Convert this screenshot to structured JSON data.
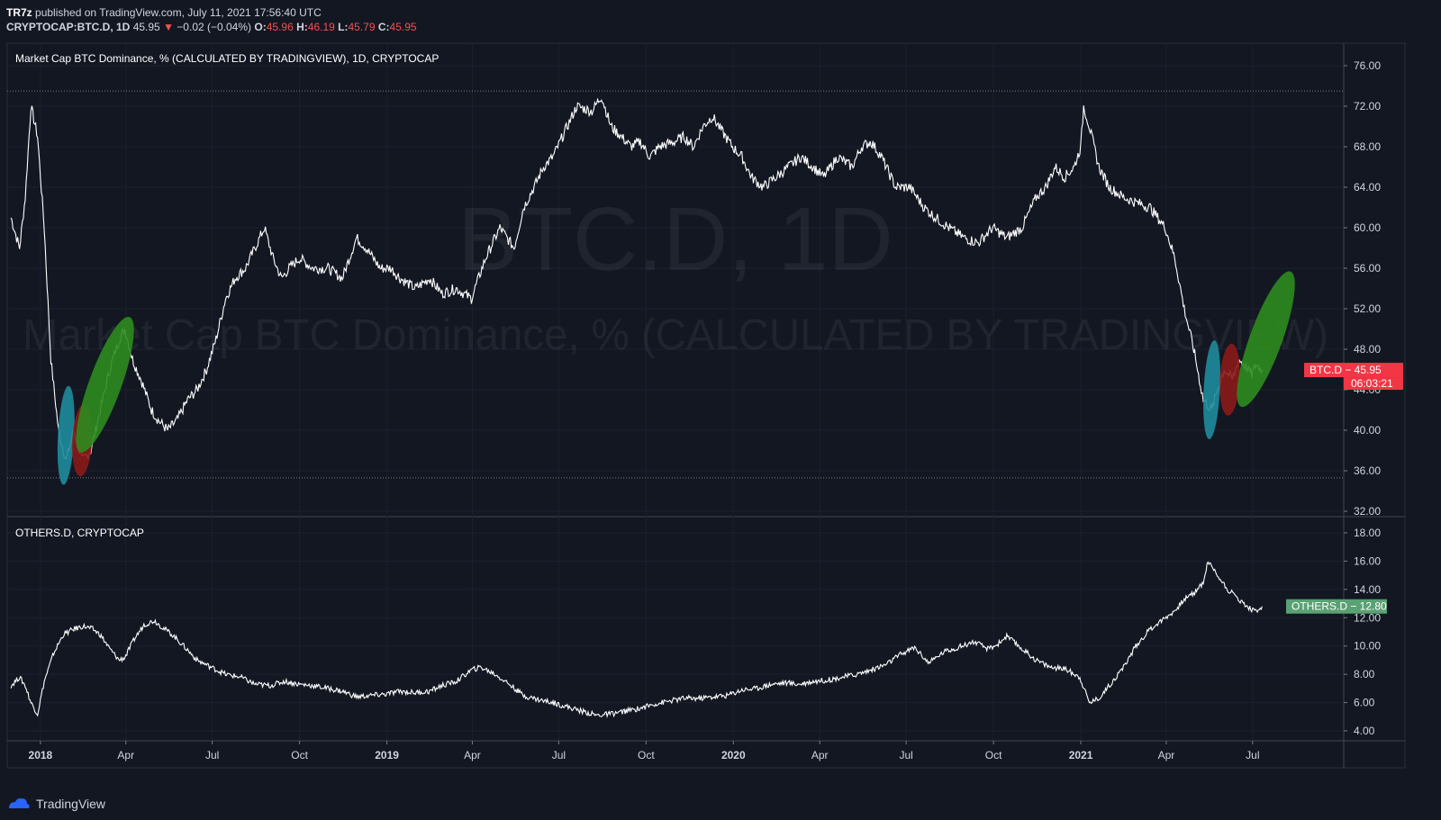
{
  "header": {
    "publisher": "TR7z",
    "published_text": "published on TradingView.com, July 11, 2021 17:56:40 UTC",
    "symbol": "CRYPTOCAP:BTC.D, 1D",
    "last": "45.95",
    "change": "−0.02 (−0.04%)",
    "open_label": "O:",
    "open": "45.96",
    "high_label": "H:",
    "high": "46.19",
    "low_label": "L:",
    "low": "45.79",
    "close_label": "C:",
    "close": "45.95"
  },
  "footer": {
    "brand": "TradingView"
  },
  "colors": {
    "background": "#131722",
    "grid": "#1c2030",
    "line": "#ffffff",
    "btc_badge": "#f23645",
    "others_badge": "#5aa174",
    "cyan_ellipse": "#1f8c9c",
    "red_ellipse": "#8b1a1a",
    "green_ellipse": "#2e8b1e"
  },
  "chart_data": [
    {
      "type": "line",
      "title": "Market Cap BTC Dominance, % (CALCULATED BY TRADINGVIEW), 1D, CRYPTOCAP",
      "watermark_symbol": "BTC.D, 1D",
      "watermark_name": "Market Cap BTC Dominance, % (CALCULATED BY TRADINGVIEW)",
      "ylim": [
        32,
        76
      ],
      "y_ticks": [
        "76.00",
        "72.00",
        "68.00",
        "64.00",
        "60.00",
        "56.00",
        "52.00",
        "48.00",
        "44.00",
        "40.00",
        "36.00",
        "32.00"
      ],
      "horizontal_dotted_lines": [
        73.5,
        35.3
      ],
      "last_label": "BTC.D",
      "last_value": "45.95",
      "countdown": "06:03:21",
      "series": [
        {
          "x": [
            "2017-12-01",
            "2017-12-10",
            "2017-12-16",
            "2017-12-22",
            "2017-12-29",
            "2018-01-05",
            "2018-01-12",
            "2018-01-20",
            "2018-01-28",
            "2018-02-05",
            "2018-02-14",
            "2018-02-23",
            "2018-03-05",
            "2018-03-15",
            "2018-03-25",
            "2018-03-31",
            "2018-04-08",
            "2018-04-17",
            "2018-04-28",
            "2018-05-05",
            "2018-05-15",
            "2018-05-25",
            "2018-06-05",
            "2018-06-15",
            "2018-06-25",
            "2018-07-05",
            "2018-07-15",
            "2018-07-25",
            "2018-08-05",
            "2018-08-15",
            "2018-08-25",
            "2018-09-03",
            "2018-09-12",
            "2018-09-20",
            "2018-10-01",
            "2018-10-15",
            "2018-10-31",
            "2018-11-15",
            "2018-11-30",
            "2018-12-10",
            "2018-12-25",
            "2019-01-05",
            "2019-01-15",
            "2019-01-31",
            "2019-02-15",
            "2019-02-28",
            "2019-03-15",
            "2019-03-31",
            "2019-04-15",
            "2019-04-30",
            "2019-05-15",
            "2019-05-25",
            "2019-06-05",
            "2019-06-15",
            "2019-06-25",
            "2019-07-05",
            "2019-07-20",
            "2019-08-05",
            "2019-08-15",
            "2019-08-25",
            "2019-09-05",
            "2019-09-15",
            "2019-09-25",
            "2019-10-05",
            "2019-10-15",
            "2019-10-31",
            "2019-11-10",
            "2019-11-20",
            "2019-11-30",
            "2019-12-10",
            "2019-12-20",
            "2019-12-31",
            "2020-01-10",
            "2020-01-20",
            "2020-02-01",
            "2020-02-15",
            "2020-02-28",
            "2020-03-12",
            "2020-03-25",
            "2020-04-05",
            "2020-04-20",
            "2020-05-05",
            "2020-05-15",
            "2020-05-25",
            "2020-06-05",
            "2020-06-20",
            "2020-07-05",
            "2020-07-20",
            "2020-08-01",
            "2020-08-15",
            "2020-08-31",
            "2020-09-15",
            "2020-09-30",
            "2020-10-15",
            "2020-10-31",
            "2020-11-15",
            "2020-11-25",
            "2020-12-05",
            "2020-12-15",
            "2020-12-25",
            "2021-01-01",
            "2021-01-04",
            "2021-01-10",
            "2021-01-20",
            "2021-01-31",
            "2021-02-15",
            "2021-02-28",
            "2021-03-15",
            "2021-03-31",
            "2021-04-10",
            "2021-04-20",
            "2021-04-30",
            "2021-05-10",
            "2021-05-19",
            "2021-05-25",
            "2021-06-01",
            "2021-06-10",
            "2021-06-16",
            "2021-06-22",
            "2021-06-30",
            "2021-07-05",
            "2021-07-11"
          ],
          "y": [
            61,
            58,
            63,
            72,
            69,
            60,
            47,
            40,
            37,
            40,
            37,
            38,
            42,
            46,
            49,
            50,
            47,
            45,
            42,
            41,
            40,
            41,
            43,
            44,
            46,
            49,
            53,
            55,
            56,
            58,
            60,
            57,
            55,
            56,
            57,
            56,
            56,
            55,
            59,
            58,
            56,
            56,
            55,
            54,
            55,
            53.5,
            54,
            53,
            57,
            60,
            58,
            62,
            64,
            66,
            67,
            69,
            72,
            71.5,
            73,
            70,
            69,
            68,
            68.5,
            67,
            68,
            68.5,
            69,
            68,
            70,
            71,
            69.5,
            68,
            67,
            65,
            64,
            65,
            66,
            67,
            66,
            65,
            67,
            66,
            68,
            68.5,
            67,
            64,
            64,
            62,
            61,
            60,
            59,
            58.5,
            60,
            59,
            60,
            63,
            64,
            66,
            65,
            66,
            68,
            72,
            70,
            66,
            64,
            63,
            62.5,
            62,
            60,
            57,
            52,
            48,
            43,
            42,
            44,
            46,
            45,
            47,
            46.5,
            45.5,
            46.5,
            45.95
          ]
        }
      ],
      "annotations": [
        {
          "shape": "ellipse",
          "color": "cyan",
          "center": [
            "2018-01-28",
            39.5
          ]
        },
        {
          "shape": "ellipse",
          "color": "red",
          "center": [
            "2018-02-14",
            39
          ]
        },
        {
          "shape": "ellipse",
          "color": "green",
          "center": [
            "2018-03-10",
            44.5
          ]
        },
        {
          "shape": "ellipse",
          "color": "cyan",
          "center": [
            "2021-05-19",
            44
          ]
        },
        {
          "shape": "ellipse",
          "color": "red",
          "center": [
            "2021-06-07",
            45
          ]
        },
        {
          "shape": "ellipse",
          "color": "green",
          "center": [
            "2021-07-15",
            49
          ]
        }
      ]
    },
    {
      "type": "line",
      "title": "OTHERS.D, CRYPTOCAP",
      "ylim": [
        3,
        19
      ],
      "y_ticks": [
        "18.00",
        "16.00",
        "14.00",
        "12.00",
        "10.00",
        "8.00",
        "6.00",
        "4.00"
      ],
      "last_label": "OTHERS.D",
      "last_value": "12.80",
      "series": [
        {
          "x": [
            "2017-12-01",
            "2017-12-10",
            "2017-12-16",
            "2017-12-22",
            "2017-12-29",
            "2018-01-05",
            "2018-01-15",
            "2018-01-25",
            "2018-02-05",
            "2018-02-15",
            "2018-02-25",
            "2018-03-05",
            "2018-03-15",
            "2018-03-25",
            "2018-03-31",
            "2018-04-10",
            "2018-04-20",
            "2018-05-01",
            "2018-05-10",
            "2018-05-20",
            "2018-06-01",
            "2018-06-15",
            "2018-06-30",
            "2018-07-15",
            "2018-07-31",
            "2018-08-15",
            "2018-08-31",
            "2018-09-15",
            "2018-09-30",
            "2018-10-15",
            "2018-10-31",
            "2018-11-15",
            "2018-11-30",
            "2018-12-15",
            "2018-12-31",
            "2019-01-15",
            "2019-01-31",
            "2019-02-15",
            "2019-02-28",
            "2019-03-15",
            "2019-03-31",
            "2019-04-10",
            "2019-04-25",
            "2019-05-10",
            "2019-05-25",
            "2019-06-10",
            "2019-06-25",
            "2019-07-10",
            "2019-07-25",
            "2019-08-10",
            "2019-08-25",
            "2019-09-10",
            "2019-09-25",
            "2019-10-10",
            "2019-10-25",
            "2019-11-10",
            "2019-11-25",
            "2019-12-10",
            "2019-12-25",
            "2020-01-10",
            "2020-01-25",
            "2020-02-10",
            "2020-02-25",
            "2020-03-10",
            "2020-03-25",
            "2020-04-10",
            "2020-04-25",
            "2020-05-10",
            "2020-05-25",
            "2020-06-10",
            "2020-06-25",
            "2020-07-10",
            "2020-07-25",
            "2020-08-10",
            "2020-08-25",
            "2020-09-10",
            "2020-09-25",
            "2020-10-05",
            "2020-10-15",
            "2020-10-31",
            "2020-11-15",
            "2020-11-30",
            "2020-12-15",
            "2020-12-31",
            "2021-01-10",
            "2021-01-20",
            "2021-01-31",
            "2021-02-15",
            "2021-02-28",
            "2021-03-15",
            "2021-03-31",
            "2021-04-10",
            "2021-04-20",
            "2021-05-01",
            "2021-05-10",
            "2021-05-15",
            "2021-05-25",
            "2021-06-05",
            "2021-06-15",
            "2021-06-25",
            "2021-07-05",
            "2021-07-11"
          ],
          "y": [
            7.2,
            7.8,
            7.2,
            6,
            5.2,
            7.5,
            9.5,
            10.8,
            11.2,
            11.4,
            11.2,
            10.8,
            9.8,
            9,
            9.2,
            10.5,
            11.5,
            11.8,
            11.3,
            10.8,
            10,
            9,
            8.5,
            8,
            7.8,
            7.3,
            7.2,
            7.5,
            7.3,
            7.2,
            7,
            6.8,
            6.4,
            6.5,
            6.6,
            6.8,
            6.7,
            6.8,
            7.2,
            7.5,
            8.3,
            8.5,
            8,
            7.3,
            6.5,
            6.2,
            6,
            5.7,
            5.4,
            5.1,
            5.2,
            5.4,
            5.6,
            5.9,
            6.1,
            6.3,
            6.3,
            6.4,
            6.5,
            6.9,
            7,
            7.3,
            7.4,
            7.3,
            7.5,
            7.6,
            7.8,
            8,
            8.3,
            8.7,
            9.4,
            9.9,
            8.8,
            9.6,
            9.9,
            10.3,
            9.8,
            10.1,
            10.7,
            9.8,
            9,
            8.5,
            8.4,
            7.8,
            6,
            6.3,
            7.2,
            8.5,
            10,
            11.2,
            12,
            12.5,
            13.3,
            13.8,
            14.5,
            16,
            15,
            14,
            13.4,
            12.8,
            12.4,
            12.8
          ]
        }
      ]
    }
  ],
  "x_axis": {
    "ticks": [
      {
        "label": "2018",
        "date": "2018-01-01",
        "bold": true
      },
      {
        "label": "Apr",
        "date": "2018-04-01"
      },
      {
        "label": "Jul",
        "date": "2018-07-01"
      },
      {
        "label": "Oct",
        "date": "2018-10-01"
      },
      {
        "label": "2019",
        "date": "2019-01-01",
        "bold": true
      },
      {
        "label": "Apr",
        "date": "2019-04-01"
      },
      {
        "label": "Jul",
        "date": "2019-07-01"
      },
      {
        "label": "Oct",
        "date": "2019-10-01"
      },
      {
        "label": "2020",
        "date": "2020-01-01",
        "bold": true
      },
      {
        "label": "Apr",
        "date": "2020-04-01"
      },
      {
        "label": "Jul",
        "date": "2020-07-01"
      },
      {
        "label": "Oct",
        "date": "2020-10-01"
      },
      {
        "label": "2021",
        "date": "2021-01-01",
        "bold": true
      },
      {
        "label": "Apr",
        "date": "2021-04-01"
      },
      {
        "label": "Jul",
        "date": "2021-07-01"
      }
    ],
    "range": [
      "2017-11-27",
      "2021-10-05"
    ]
  }
}
